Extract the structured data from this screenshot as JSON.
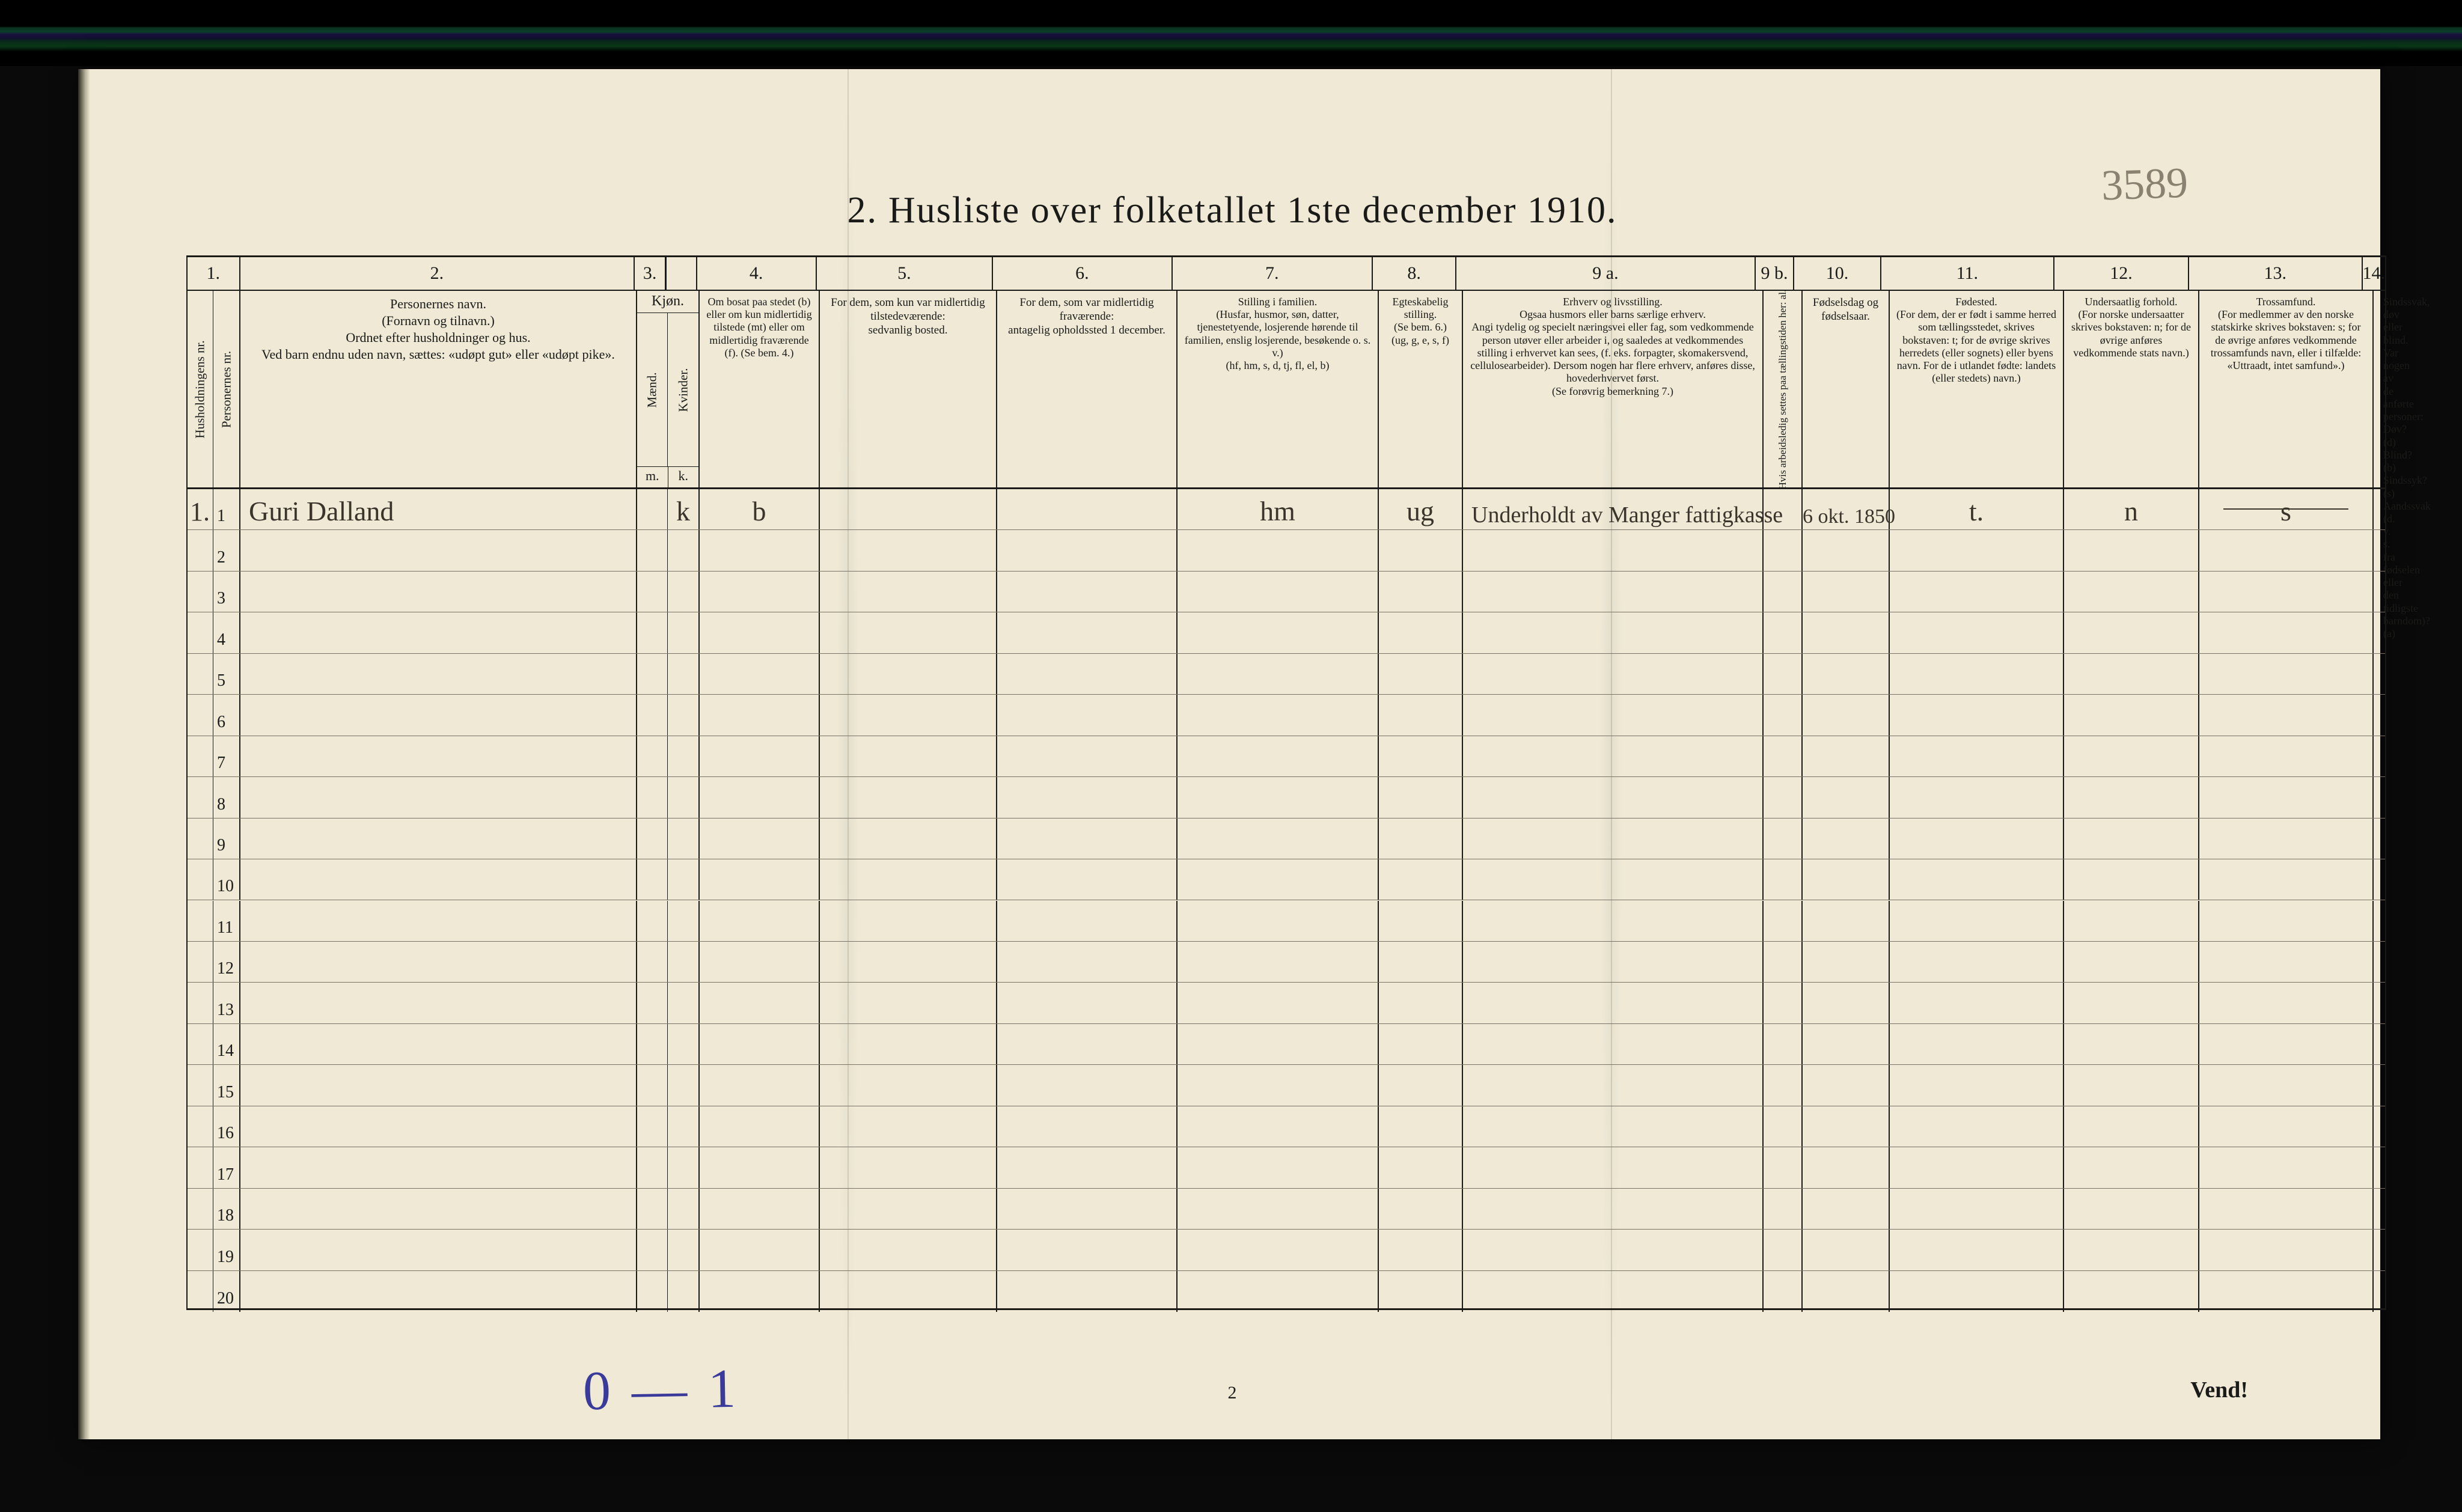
{
  "page_number_handwritten": "3589",
  "title_number": "2.",
  "title_text": "Husliste over folketallet 1ste december 1910.",
  "col_numbers": [
    "1.",
    "2.",
    "3.",
    "4.",
    "5.",
    "6.",
    "7.",
    "8.",
    "9 a.",
    "9 b.",
    "10.",
    "11.",
    "12.",
    "13.",
    "14."
  ],
  "headers": {
    "c1a": "Husholdningens nr.",
    "c1b": "Personernes nr.",
    "c2": "Personernes navn.\n(Fornavn og tilnavn.)\nOrdnet efter husholdninger og hus.\nVed barn endnu uden navn, sættes: «udøpt gut» eller «udøpt pike».",
    "c3_top": "Kjøn.",
    "c3a": "Mænd.",
    "c3b": "Kvinder.",
    "c3_bot_l": "m.",
    "c3_bot_r": "k.",
    "c4": "Om bosat paa stedet (b) eller om kun midlertidig tilstede (mt) eller om midlertidig fraværende (f). (Se bem. 4.)",
    "c5": "For dem, som kun var midlertidig tilstedeværende:\nsedvanlig bosted.",
    "c6": "For dem, som var midlertidig fraværende:\nantagelig opholdssted 1 december.",
    "c7": "Stilling i familien.\n(Husfar, husmor, søn, datter, tjenestetyende, losjerende hørende til familien, enslig losjerende, besøkende o. s. v.)\n(hf, hm, s, d, tj, fl, el, b)",
    "c8": "Egteskabelig stilling.\n(Se bem. 6.)\n(ug, g, e, s, f)",
    "c9a": "Erhverv og livsstilling.\nOgsaa husmors eller barns særlige erhverv.\nAngi tydelig og specielt næringsvei eller fag, som vedkommende person utøver eller arbeider i, og saaledes at vedkommendes stilling i erhvervet kan sees, (f. eks. forpagter, skomakersvend, cellulosearbeider). Dersom nogen har flere erhverv, anføres disse, hovederhvervet først.\n(Se forøvrig bemerkning 7.)",
    "c9b": "Hvis arbeidsledig settes paa tællingstiden her: al.",
    "c10": "Fødselsdag og fødselsaar.",
    "c11": "Fødested.\n(For dem, der er født i samme herred som tællingsstedet, skrives bokstaven: t; for de øvrige skrives herredets (eller sognets) eller byens navn. For de i utlandet fødte: landets (eller stedets) navn.)",
    "c12": "Undersaatlig forhold.\n(For norske undersaatter skrives bokstaven: n; for de øvrige anføres vedkommende stats navn.)",
    "c13": "Trossamfund.\n(For medlemmer av den norske statskirke skrives bokstaven: s; for de øvrige anføres vedkommende trossamfunds navn, eller i tilfælde: «Uttraadt, intet samfund».)",
    "c14": "Sindssvak, døv eller blind.\nVar nogen av de anførte personer:\nDøv?        (d)\nBlind?      (b)\nSindssyk?   (s)\nAandssvak   (d. v. s. fra fødselen eller den tidligste barndom)?  (a)"
  },
  "body_row_count": 20,
  "entry": {
    "hush_nr": "1.",
    "pers_nr": "1",
    "name": "Guri Dalland",
    "kjon_k": "k",
    "bosat": "b",
    "stilling_familie": "hm",
    "egteskab": "ug",
    "erhverv": "Underholdt av Manger fattigkasse",
    "fodsel": "6 okt. 1850",
    "fodested": "t.",
    "undersaat": "n",
    "tros": "s"
  },
  "footer_page_num": "2",
  "footer_vend": "Vend!",
  "blue_annotation": "0 — 1",
  "colors": {
    "paper": "#efe9d6",
    "ink": "#1a1a18",
    "hand_ink": "#3a342a",
    "blue_pencil": "#3a3a9a",
    "rule_light": "#7a7264"
  }
}
